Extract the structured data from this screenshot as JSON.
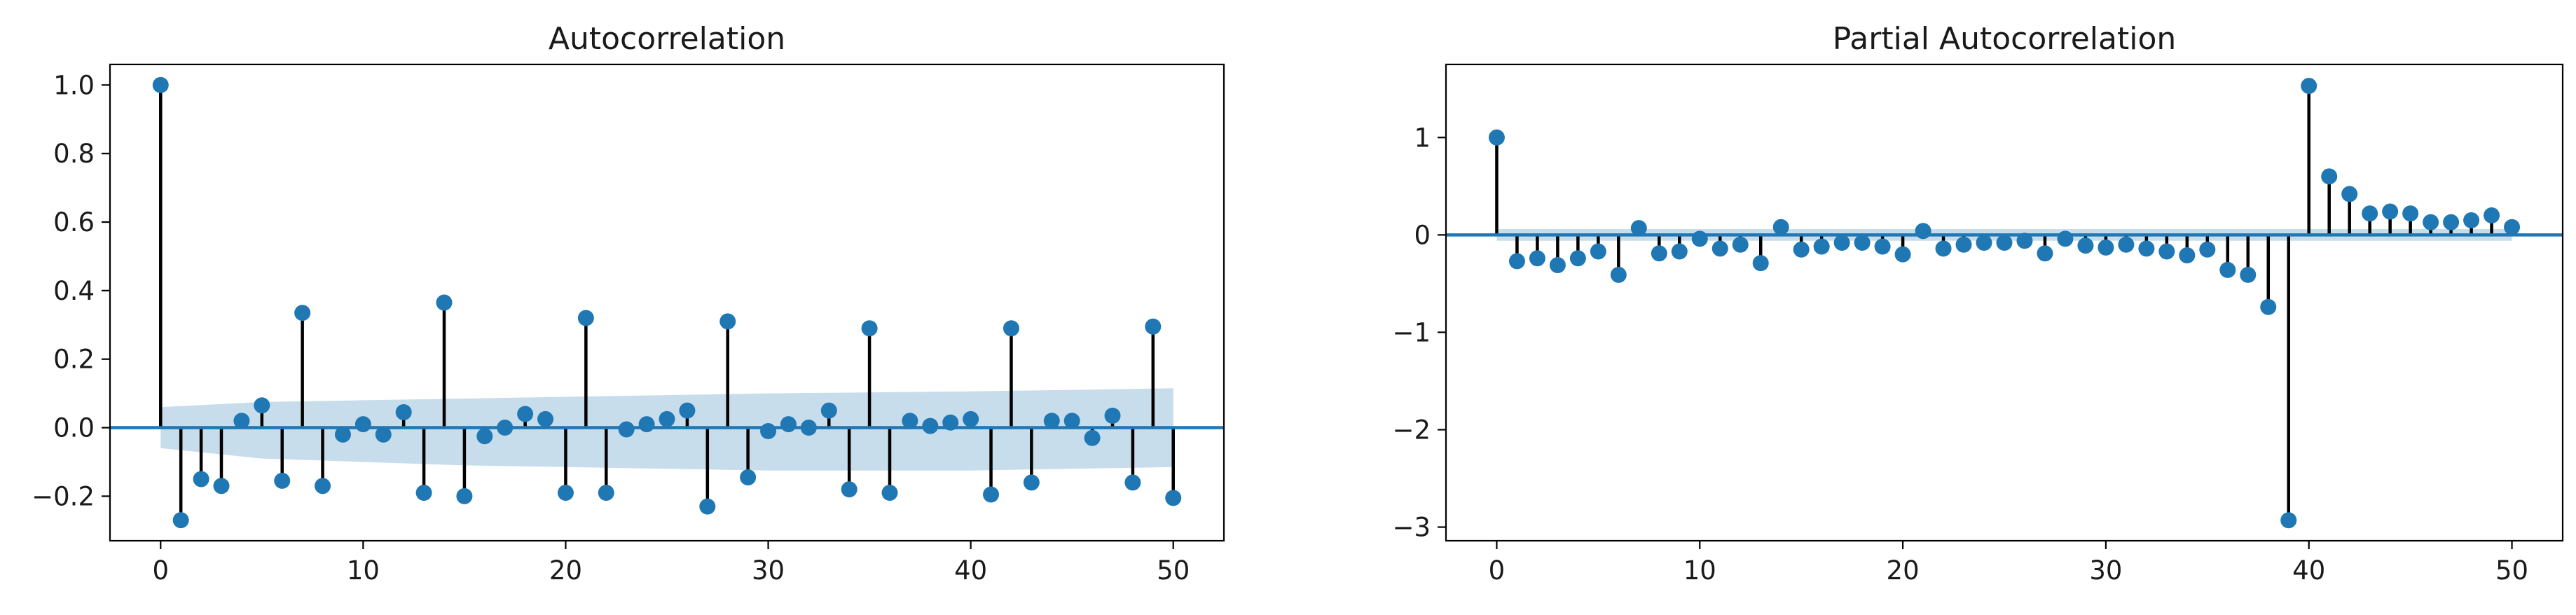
{
  "chart_data": [
    {
      "type": "stem",
      "title": "Autocorrelation",
      "xlabel": "",
      "ylabel": "",
      "xlim": [
        -2.5,
        52.5
      ],
      "ylim": [
        -0.33,
        1.06
      ],
      "xticks": [
        0,
        10,
        20,
        30,
        40,
        50
      ],
      "xtick_labels": [
        "0",
        "10",
        "20",
        "30",
        "40",
        "50"
      ],
      "yticks": [
        -0.2,
        0.0,
        0.2,
        0.4,
        0.6,
        0.8,
        1.0
      ],
      "ytick_labels": [
        "−0.2",
        "0.0",
        "0.2",
        "0.4",
        "0.6",
        "0.8",
        "1.0"
      ],
      "x": [
        0,
        1,
        2,
        3,
        4,
        5,
        6,
        7,
        8,
        9,
        10,
        11,
        12,
        13,
        14,
        15,
        16,
        17,
        18,
        19,
        20,
        21,
        22,
        23,
        24,
        25,
        26,
        27,
        28,
        29,
        30,
        31,
        32,
        33,
        34,
        35,
        36,
        37,
        38,
        39,
        40,
        41,
        42,
        43,
        44,
        45,
        46,
        47,
        48,
        49,
        50
      ],
      "values": [
        1.0,
        -0.27,
        -0.15,
        -0.17,
        0.02,
        0.065,
        -0.155,
        0.335,
        -0.17,
        -0.02,
        0.01,
        -0.02,
        0.045,
        -0.19,
        0.365,
        -0.2,
        -0.025,
        0.0,
        0.04,
        0.025,
        -0.19,
        0.32,
        -0.19,
        -0.005,
        0.01,
        0.025,
        0.05,
        -0.23,
        0.31,
        -0.145,
        -0.01,
        0.01,
        0.0,
        0.05,
        -0.18,
        0.29,
        -0.19,
        0.02,
        0.005,
        0.015,
        0.025,
        -0.195,
        0.29,
        -0.16,
        0.02,
        0.02,
        -0.03,
        0.035,
        -0.16,
        0.295,
        -0.205
      ],
      "confidence_band": {
        "x": [
          0,
          5,
          10,
          15,
          20,
          25,
          30,
          35,
          40,
          45,
          50
        ],
        "upper": [
          0.06,
          0.075,
          0.08,
          0.085,
          0.09,
          0.095,
          0.1,
          0.103,
          0.106,
          0.11,
          0.115
        ],
        "lower": [
          -0.06,
          -0.09,
          -0.1,
          -0.11,
          -0.115,
          -0.12,
          -0.125,
          -0.125,
          -0.125,
          -0.12,
          -0.115
        ]
      },
      "grid": false
    },
    {
      "type": "stem",
      "title": "Partial Autocorrelation",
      "xlabel": "",
      "ylabel": "",
      "xlim": [
        -2.5,
        52.5
      ],
      "ylim": [
        -3.14,
        1.75
      ],
      "xticks": [
        0,
        10,
        20,
        30,
        40,
        50
      ],
      "xtick_labels": [
        "0",
        "10",
        "20",
        "30",
        "40",
        "50"
      ],
      "yticks": [
        -3,
        -2,
        -1,
        0,
        1
      ],
      "ytick_labels": [
        "−3",
        "−2",
        "−1",
        "0",
        "1"
      ],
      "x": [
        0,
        1,
        2,
        3,
        4,
        5,
        6,
        7,
        8,
        9,
        10,
        11,
        12,
        13,
        14,
        15,
        16,
        17,
        18,
        19,
        20,
        21,
        22,
        23,
        24,
        25,
        26,
        27,
        28,
        29,
        30,
        31,
        32,
        33,
        34,
        35,
        36,
        37,
        38,
        39,
        40,
        41,
        42,
        43,
        44,
        45,
        46,
        47,
        48,
        49,
        50
      ],
      "values": [
        1.0,
        -0.27,
        -0.24,
        -0.31,
        -0.24,
        -0.17,
        -0.41,
        0.07,
        -0.19,
        -0.17,
        -0.04,
        -0.14,
        -0.1,
        -0.29,
        0.08,
        -0.15,
        -0.12,
        -0.08,
        -0.08,
        -0.12,
        -0.2,
        0.04,
        -0.14,
        -0.1,
        -0.08,
        -0.08,
        -0.06,
        -0.19,
        -0.04,
        -0.11,
        -0.13,
        -0.1,
        -0.14,
        -0.17,
        -0.21,
        -0.15,
        -0.36,
        -0.41,
        -0.74,
        -2.93,
        1.53,
        0.6,
        0.42,
        0.22,
        0.24,
        0.22,
        0.13,
        0.13,
        0.15,
        0.2,
        0.08
      ],
      "confidence_band": {
        "x": [
          0,
          50
        ],
        "upper": [
          0.06,
          0.06
        ],
        "lower": [
          -0.06,
          -0.06
        ]
      },
      "grid": false
    }
  ],
  "colors": {
    "marker": "#1f77b4",
    "stem": "#000000",
    "baseline": "#1f77b4",
    "band": "#1f77b4"
  }
}
